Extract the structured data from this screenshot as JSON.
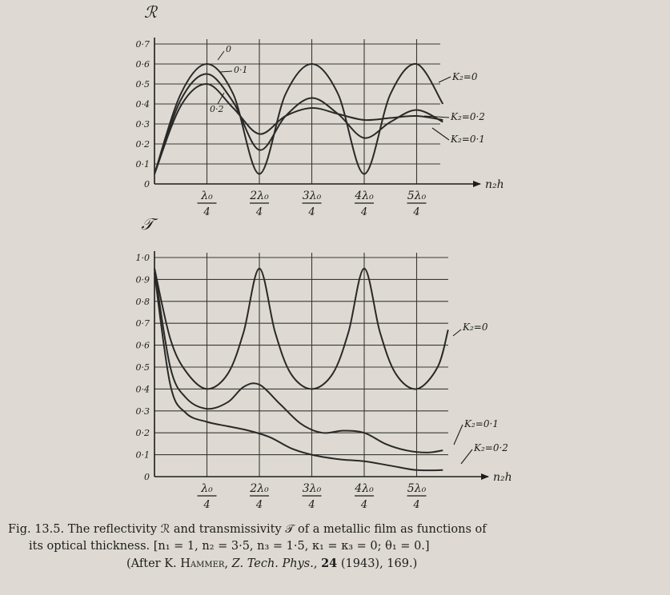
{
  "chart_data": [
    {
      "type": "line",
      "ylabel": "ℛ",
      "xlabel": "n₂h",
      "ylim": [
        0,
        0.7
      ],
      "xlim": [
        0,
        6.5
      ],
      "y_ticks": [
        {
          "v": 0,
          "label": "0"
        },
        {
          "v": 0.1,
          "label": "0·1"
        },
        {
          "v": 0.2,
          "label": "0·2"
        },
        {
          "v": 0.3,
          "label": "0·3"
        },
        {
          "v": 0.4,
          "label": "0·4"
        },
        {
          "v": 0.5,
          "label": "0·5"
        },
        {
          "v": 0.6,
          "label": "0·6"
        },
        {
          "v": 0.7,
          "label": "0·7"
        }
      ],
      "x_ticks": [
        {
          "v": 1,
          "num": "λ₀",
          "den": "4"
        },
        {
          "v": 2,
          "num": "2λ₀",
          "den": "4"
        },
        {
          "v": 3,
          "num": "3λ₀",
          "den": "4"
        },
        {
          "v": 4,
          "num": "4λ₀",
          "den": "4"
        },
        {
          "v": 5,
          "num": "5λ₀",
          "den": "4"
        }
      ],
      "grid": true,
      "series": [
        {
          "name": "K₂=0",
          "curve_label": "0",
          "x": [
            0,
            0.5,
            1,
            1.5,
            2,
            2.5,
            3,
            3.5,
            4,
            4.5,
            5,
            5.5
          ],
          "y": [
            0.05,
            0.45,
            0.6,
            0.45,
            0.05,
            0.45,
            0.6,
            0.45,
            0.05,
            0.45,
            0.6,
            0.4
          ]
        },
        {
          "name": "K₂=0·1",
          "curve_label": "0·1",
          "x": [
            0,
            0.5,
            1,
            1.5,
            2,
            2.5,
            3,
            3.5,
            4,
            4.5,
            5,
            5.5
          ],
          "y": [
            0.05,
            0.42,
            0.55,
            0.41,
            0.17,
            0.34,
            0.43,
            0.35,
            0.23,
            0.31,
            0.37,
            0.31
          ]
        },
        {
          "name": "K₂=0·2",
          "curve_label": "0·2",
          "x": [
            0,
            0.5,
            1,
            1.5,
            2,
            2.5,
            3,
            3.5,
            4,
            4.5,
            5,
            5.5
          ],
          "y": [
            0.05,
            0.39,
            0.5,
            0.38,
            0.25,
            0.34,
            0.38,
            0.35,
            0.32,
            0.33,
            0.34,
            0.32
          ]
        }
      ]
    },
    {
      "type": "line",
      "ylabel": "𝒯",
      "xlabel": "n₂h",
      "ylim": [
        0,
        1.0
      ],
      "xlim": [
        0,
        6.5
      ],
      "y_ticks": [
        {
          "v": 0,
          "label": "0"
        },
        {
          "v": 0.1,
          "label": "0·1"
        },
        {
          "v": 0.2,
          "label": "0·2"
        },
        {
          "v": 0.3,
          "label": "0·3"
        },
        {
          "v": 0.4,
          "label": "0·4"
        },
        {
          "v": 0.5,
          "label": "0·5"
        },
        {
          "v": 0.6,
          "label": "0·6"
        },
        {
          "v": 0.7,
          "label": "0·7"
        },
        {
          "v": 0.8,
          "label": "0·8"
        },
        {
          "v": 0.9,
          "label": "0·9"
        },
        {
          "v": 1.0,
          "label": "1·0"
        }
      ],
      "x_ticks": [
        {
          "v": 1,
          "num": "λ₀",
          "den": "4"
        },
        {
          "v": 2,
          "num": "2λ₀",
          "den": "4"
        },
        {
          "v": 3,
          "num": "3λ₀",
          "den": "4"
        },
        {
          "v": 4,
          "num": "4λ₀",
          "den": "4"
        },
        {
          "v": 5,
          "num": "5λ₀",
          "den": "4"
        }
      ],
      "grid": true,
      "series": [
        {
          "name": "K₂=0",
          "x": [
            0,
            0.3,
            0.6,
            1,
            1.4,
            1.7,
            2,
            2.3,
            2.6,
            3,
            3.4,
            3.7,
            4,
            4.3,
            4.6,
            5,
            5.4,
            5.6
          ],
          "y": [
            0.95,
            0.63,
            0.48,
            0.4,
            0.47,
            0.66,
            0.95,
            0.66,
            0.47,
            0.4,
            0.47,
            0.66,
            0.95,
            0.66,
            0.47,
            0.4,
            0.5,
            0.67
          ]
        },
        {
          "name": "K₂=0·1",
          "x": [
            0,
            0.3,
            0.6,
            1,
            1.4,
            1.7,
            2,
            2.4,
            2.8,
            3.2,
            3.6,
            4,
            4.4,
            4.8,
            5.2,
            5.5
          ],
          "y": [
            0.95,
            0.5,
            0.36,
            0.31,
            0.34,
            0.41,
            0.42,
            0.33,
            0.24,
            0.2,
            0.21,
            0.2,
            0.15,
            0.12,
            0.11,
            0.12
          ]
        },
        {
          "name": "K₂=0·2",
          "x": [
            0,
            0.3,
            0.6,
            1,
            1.4,
            1.8,
            2.2,
            2.6,
            3,
            3.5,
            4,
            4.5,
            5,
            5.5
          ],
          "y": [
            0.93,
            0.42,
            0.29,
            0.25,
            0.23,
            0.21,
            0.18,
            0.13,
            0.1,
            0.08,
            0.07,
            0.05,
            0.03,
            0.03
          ]
        }
      ]
    }
  ],
  "caption": {
    "figno": "Fig. 13.5.",
    "line1": "The reflectivity ℛ and transmissivity 𝒯 of a metallic film as functions of",
    "line2": "its optical thickness.  [n₁ = 1, n₂ = 3·5, n₃ = 1·5, κ₁ = κ₃ = 0;  θ₁ = 0.]",
    "line3_a": "(After K. ",
    "line3_author": "Hammer",
    "line3_b": ", ",
    "line3_journal": "Z. Tech. Phys.",
    "line3_c": ", ",
    "line3_vol": "24",
    "line3_d": " (1943), 169.)"
  }
}
